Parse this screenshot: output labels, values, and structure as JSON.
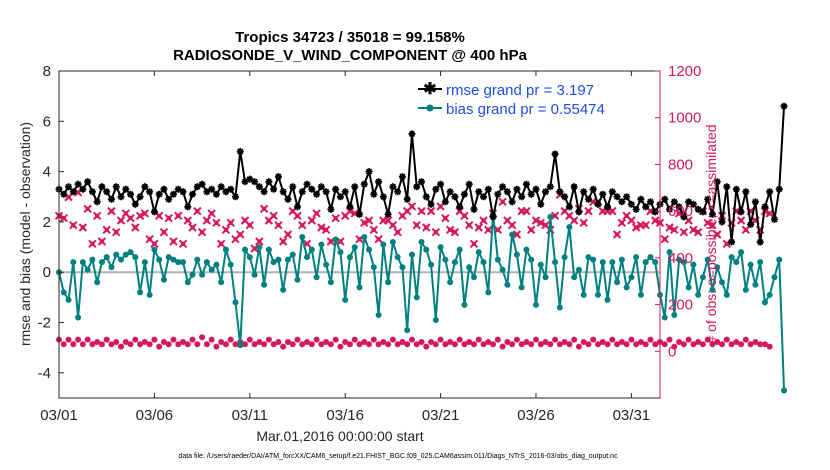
{
  "chart_data": {
    "type": "line",
    "title_line1": "Tropics 34723 / 35018 = 99.158%",
    "title_line2": "RADIOSONDE_V_WIND_COMPONENT @ 400 hPa",
    "xlabel": "Mar.01,2016 00:00:00 start",
    "ylabel_left": "rmse and bias (model - observation)",
    "ylabel_right": "# of obs: o=possible; ×=assimilated",
    "footnote": "data file: /Users/raeder/DAI/ATM_forcXX/CAM6_setup/f.e21.FHIST_BGC.f09_025.CAM6assim.011/Diags_NTrS_2016-03/obs_diag_output.nc",
    "xlim": [
      0,
      31.5
    ],
    "x_ticks": [
      0,
      5,
      10,
      15,
      20,
      25,
      30
    ],
    "x_tick_labels": [
      "03/01",
      "03/06",
      "03/11",
      "03/16",
      "03/21",
      "03/26",
      "03/31"
    ],
    "ylim_left": [
      -5,
      8
    ],
    "y_ticks_left": [
      -4,
      -2,
      0,
      2,
      4,
      6,
      8
    ],
    "y_tick_labels_left": [
      "-4",
      "-2",
      "0",
      "2",
      "4",
      "6",
      "8"
    ],
    "ylim_right": [
      -200,
      1200
    ],
    "y_ticks_right": [
      0,
      200,
      400,
      600,
      800,
      1000,
      1200
    ],
    "y_tick_labels_right": [
      "0",
      "200",
      "400",
      "600",
      "800",
      "1000",
      "1200"
    ],
    "legend": [
      {
        "label": "rmse grand pr = 3.197",
        "color": "#000000",
        "marker": "*"
      },
      {
        "label": "bias grand pr = 0.55474",
        "color": "#008080",
        "marker": "o"
      }
    ],
    "colors": {
      "rmse": "#000000",
      "bias": "#008080",
      "obs": "#d6195f",
      "zero_line": "#b3b3b3",
      "right_axis": "#d6195f",
      "legend_text": "#1f4fe0"
    },
    "step": 0.25,
    "rmse": [
      3.3,
      3.1,
      3.4,
      3.2,
      3.5,
      3.3,
      3.6,
      3.2,
      2.8,
      3.4,
      3.2,
      2.9,
      3.4,
      3.0,
      3.3,
      3.1,
      2.7,
      3.0,
      3.4,
      3.2,
      2.4,
      3.1,
      3.3,
      2.9,
      3.1,
      3.3,
      3.2,
      2.6,
      3.1,
      3.4,
      3.5,
      3.2,
      3.3,
      3.1,
      3.4,
      3.2,
      3.3,
      3.0,
      4.8,
      3.6,
      3.7,
      3.6,
      3.4,
      3.2,
      3.6,
      3.3,
      3.8,
      3.2,
      2.9,
      3.4,
      2.6,
      3.2,
      3.5,
      3.3,
      3.1,
      3.4,
      3.2,
      2.5,
      3.3,
      3.0,
      3.2,
      2.6,
      3.4,
      2.3,
      3.5,
      4.0,
      3.1,
      3.6,
      3.0,
      2.3,
      3.4,
      3.2,
      3.8,
      2.9,
      5.5,
      3.4,
      3.6,
      3.0,
      2.7,
      3.3,
      3.5,
      2.8,
      3.2,
      3.0,
      2.6,
      3.1,
      3.5,
      2.5,
      3.2,
      3.0,
      3.3,
      2.2,
      3.1,
      3.4,
      3.2,
      2.8,
      3.3,
      3.0,
      3.5,
      3.1,
      3.3,
      2.7,
      3.2,
      3.4,
      4.7,
      3.2,
      3.0,
      2.6,
      3.4,
      2.4,
      3.2,
      2.9,
      3.3,
      2.7,
      3.1,
      2.6,
      3.2,
      3.0,
      2.8,
      3.0,
      2.7,
      2.5,
      2.9,
      2.6,
      2.8,
      2.4,
      2.7,
      2.9,
      2.5,
      2.8,
      2.6,
      2.2,
      2.8,
      2.7,
      2.5,
      2.4,
      2.9,
      2.3,
      3.6,
      2.0,
      3.4,
      1.2,
      3.3,
      2.4,
      3.2,
      1.9,
      2.8,
      1.2,
      2.6,
      3.2,
      2.1,
      3.3,
      6.6
    ],
    "bias": [
      0.0,
      -0.8,
      -1.1,
      0.4,
      -1.8,
      0.4,
      0.1,
      0.5,
      -0.4,
      0.4,
      0.6,
      0.2,
      0.7,
      0.5,
      0.7,
      0.8,
      0.6,
      -0.8,
      0.4,
      -0.9,
      0.9,
      0.5,
      -0.3,
      0.6,
      0.5,
      0.4,
      0.4,
      -0.4,
      -0.1,
      0.5,
      -0.1,
      0.4,
      0.1,
      0.3,
      -0.4,
      0.9,
      0.3,
      -1.2,
      -2.9,
      0.9,
      0.6,
      -0.1,
      1.0,
      -0.5,
      0.9,
      0.4,
      0.5,
      -0.7,
      0.5,
      0.7,
      -0.3,
      1.4,
      0.6,
      0.9,
      -0.2,
      1.1,
      0.3,
      -0.4,
      1.3,
      0.8,
      -1.1,
      0.6,
      1.0,
      -0.6,
      1.4,
      0.9,
      0.2,
      -1.7,
      1.1,
      -0.4,
      1.2,
      0.6,
      0.2,
      -2.3,
      0.7,
      -1.0,
      1.2,
      0.9,
      0.3,
      -1.9,
      1.0,
      0.5,
      -0.4,
      0.4,
      0.9,
      -1.3,
      0.2,
      -0.2,
      0.8,
      0.4,
      -0.8,
      2.3,
      0.5,
      0.1,
      -0.5,
      1.5,
      0.7,
      -0.6,
      0.9,
      0.5,
      -1.3,
      0.3,
      -0.2,
      2.2,
      0.4,
      -1.4,
      0.6,
      1.8,
      -0.2,
      0.1,
      -0.9,
      0.6,
      0.5,
      -0.9,
      0.4,
      -1.1,
      0.4,
      -0.4,
      0.5,
      -0.6,
      -0.2,
      0.6,
      -0.9,
      0.4,
      0.6,
      0.4,
      -0.9,
      -1.8,
      0.8,
      -1.7,
      0.5,
      0.4,
      -0.6,
      0.3,
      -0.9,
      -0.2,
      0.5,
      -0.7,
      0.2,
      -0.4,
      -0.9,
      0.6,
      0.4,
      0.8,
      -0.7,
      0.3,
      -0.5,
      0.4,
      -1.2,
      -0.9,
      -0.2,
      0.5,
      -4.7
    ],
    "obs_possible": [
      50,
      30,
      50,
      30,
      50,
      30,
      50,
      30,
      40,
      30,
      50,
      30,
      40,
      20,
      40,
      30,
      50,
      30,
      40,
      30,
      50,
      20,
      40,
      30,
      50,
      30,
      40,
      30,
      50,
      30,
      60,
      30,
      50,
      20,
      40,
      30,
      50,
      30,
      40,
      30,
      50,
      30,
      40,
      30,
      50,
      30,
      40,
      20,
      40,
      30,
      50,
      30,
      40,
      30,
      50,
      30,
      40,
      30,
      50,
      20,
      40,
      30,
      50,
      30,
      40,
      30,
      50,
      30,
      40,
      30,
      50,
      30,
      40,
      30,
      50,
      30,
      40,
      20,
      40,
      30,
      50,
      30,
      40,
      30,
      50,
      30,
      40,
      30,
      50,
      30,
      40,
      30,
      50,
      20,
      40,
      30,
      50,
      30,
      40,
      30,
      50,
      30,
      40,
      30,
      50,
      30,
      40,
      30,
      50,
      20,
      40,
      30,
      50,
      30,
      40,
      30,
      50,
      30,
      40,
      30,
      50,
      30,
      40,
      30,
      50,
      30,
      40,
      30,
      50,
      20,
      40,
      30,
      50,
      30,
      40,
      30,
      50,
      30,
      40,
      30,
      50,
      30,
      40,
      30,
      50,
      30,
      40,
      30,
      30,
      20
    ],
    "obs_assimilated": [
      580,
      570,
      660,
      540,
      680,
      530,
      610,
      460,
      580,
      470,
      520,
      600,
      510,
      560,
      590,
      570,
      530,
      580,
      590,
      480,
      460,
      580,
      510,
      570,
      470,
      580,
      460,
      560,
      530,
      600,
      510,
      560,
      590,
      550,
      460,
      520,
      550,
      480,
      500,
      560,
      540,
      440,
      470,
      610,
      560,
      580,
      540,
      470,
      500,
      600,
      580,
      540,
      460,
      560,
      590,
      530,
      520,
      470,
      570,
      470,
      580,
      600,
      590,
      480,
      550,
      560,
      520,
      480,
      560,
      560,
      540,
      510,
      580,
      600,
      620,
      540,
      600,
      530,
      600,
      510,
      620,
      570,
      520,
      510,
      600,
      580,
      540,
      460,
      530,
      560,
      520,
      590,
      520,
      640,
      560,
      540,
      500,
      600,
      600,
      520,
      560,
      550,
      540,
      520,
      580,
      670,
      600,
      580,
      560,
      610,
      550,
      600,
      640,
      640,
      600,
      600,
      600,
      500,
      550,
      580,
      560,
      530,
      540,
      540,
      600,
      560,
      550,
      480,
      530,
      520,
      590,
      510,
      560,
      520,
      510,
      600,
      550,
      540,
      500,
      580,
      460,
      550,
      600,
      560,
      520,
      600,
      560,
      520,
      600,
      590
    ]
  }
}
